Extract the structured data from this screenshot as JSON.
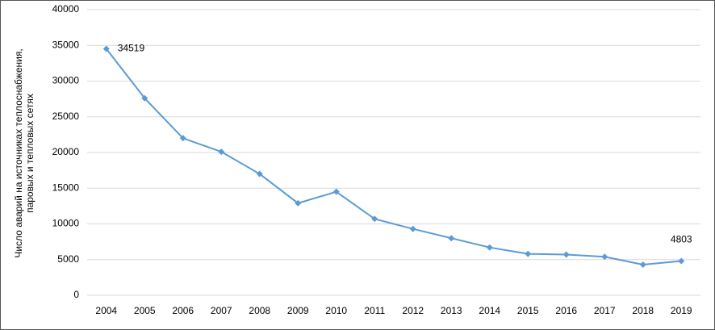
{
  "chart_data": {
    "type": "line",
    "y_label": [
      "Число аварий на источниках теплоснабжения,",
      "паровых и тепловых сетях"
    ],
    "categories": [
      "2004",
      "2005",
      "2006",
      "2007",
      "2008",
      "2009",
      "2010",
      "2011",
      "2012",
      "2013",
      "2014",
      "2015",
      "2016",
      "2017",
      "2018",
      "2019"
    ],
    "values": [
      34519,
      27600,
      22000,
      20100,
      17000,
      12900,
      14500,
      10700,
      9300,
      8000,
      6700,
      5800,
      5700,
      5400,
      4300,
      4803
    ],
    "value_labels": [
      "34519",
      null,
      null,
      null,
      null,
      null,
      null,
      null,
      null,
      null,
      null,
      null,
      null,
      null,
      null,
      "4803"
    ],
    "color": "#5b9bd5",
    "ylim": [
      0,
      40000
    ],
    "yticks": [
      0,
      5000,
      10000,
      15000,
      20000,
      25000,
      30000,
      35000,
      40000
    ],
    "grid": true
  }
}
